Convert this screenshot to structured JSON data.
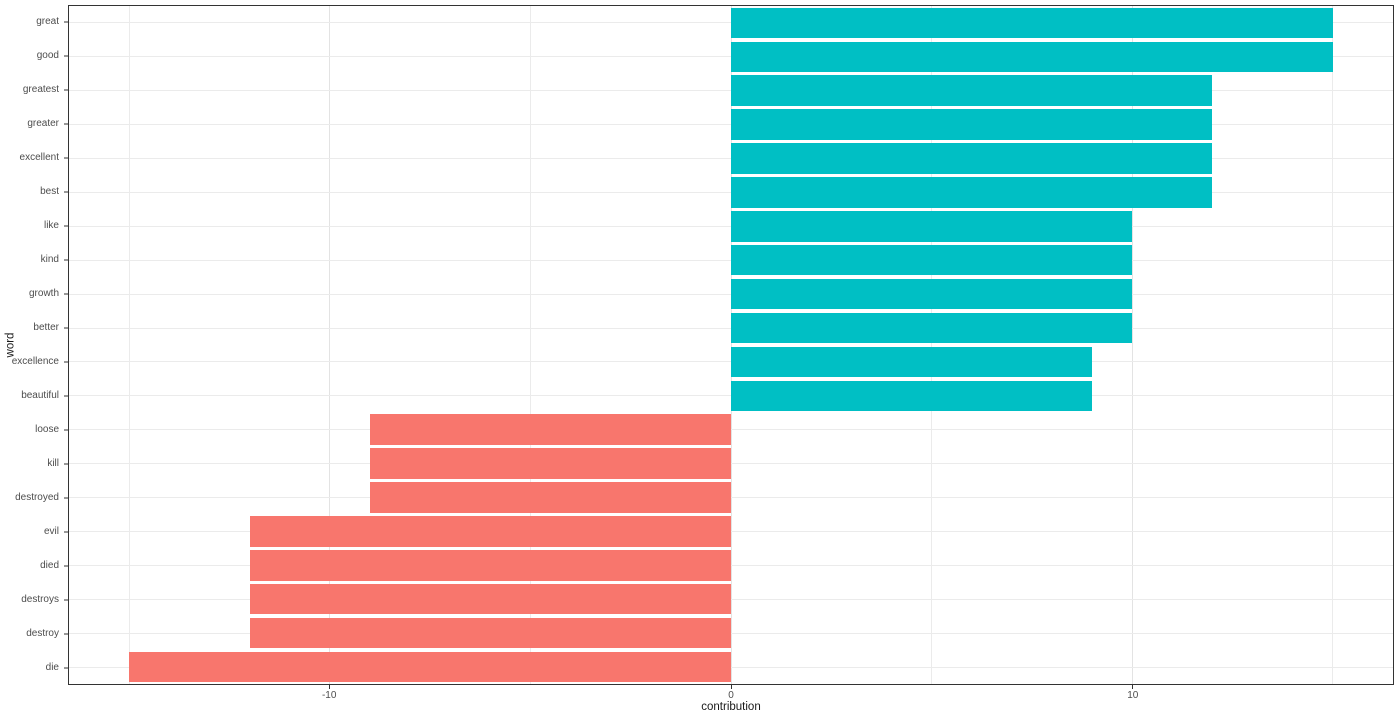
{
  "chart_data": {
    "type": "bar",
    "orientation": "horizontal",
    "title": "",
    "xlabel": "contribution",
    "ylabel": "word",
    "categories": [
      "great",
      "good",
      "greatest",
      "greater",
      "excellent",
      "best",
      "like",
      "kind",
      "growth",
      "better",
      "excellence",
      "beautiful",
      "loose",
      "kill",
      "destroyed",
      "evil",
      "died",
      "destroys",
      "destroy",
      "die"
    ],
    "values": [
      15,
      15,
      12,
      12,
      12,
      12,
      10,
      10,
      10,
      10,
      9,
      9,
      -9,
      -9,
      -9,
      -12,
      -12,
      -12,
      -12,
      -15
    ],
    "series": [
      {
        "name": "positive",
        "color": "#00BFC4"
      },
      {
        "name": "negative",
        "color": "#F8766D"
      }
    ],
    "xlim": [
      -16.5,
      16.5
    ],
    "x_major_ticks": [
      -10,
      0,
      10
    ],
    "x_minor_gridlines": [
      -15,
      -5,
      5,
      15
    ],
    "bar_width_fraction": 0.9,
    "grid": "on",
    "legend": "none",
    "colors": {
      "positive_bar": "#00BFC4",
      "negative_bar": "#F8766D",
      "panel_border": "#333333",
      "major_gridline": "#E3E3E3",
      "minor_gridline": "#EBEBEB",
      "tick_mark": "#333333",
      "tick_label": "#4D4D4D",
      "axis_title": "#1A1A1A",
      "background": "#FFFFFF"
    }
  }
}
